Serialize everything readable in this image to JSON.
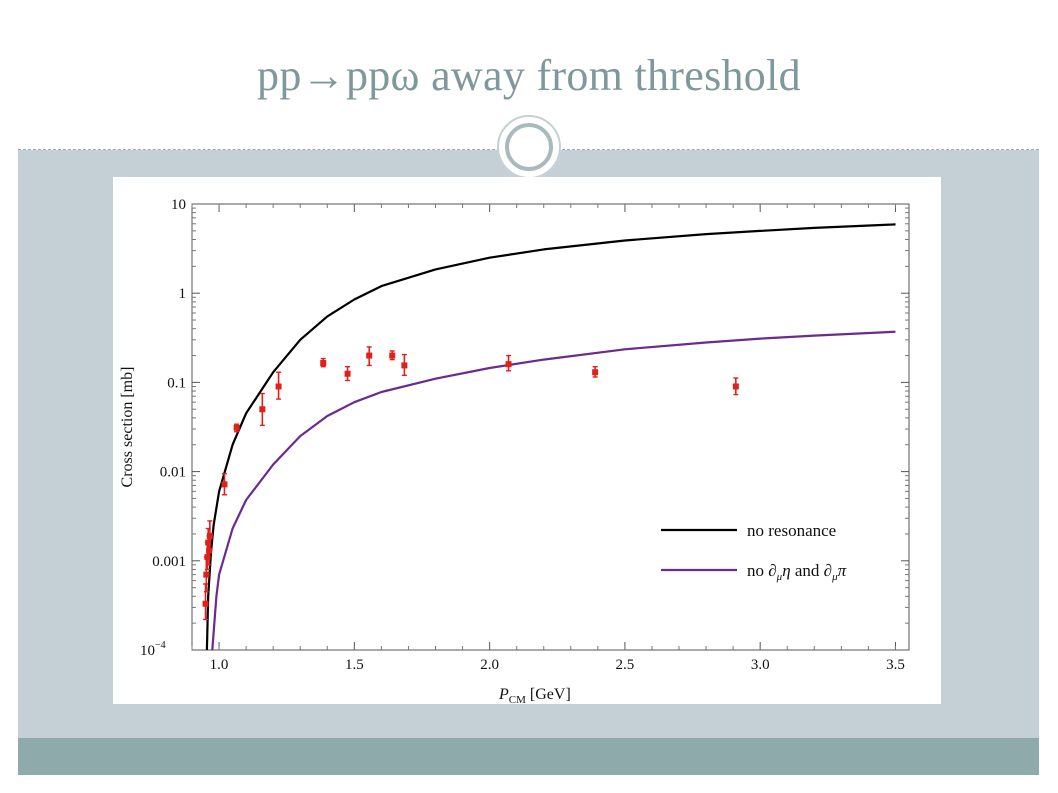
{
  "slide": {
    "title": "pp→ppω away from threshold"
  },
  "chart_data": {
    "type": "scatter",
    "xlabel_main": "P",
    "xlabel_sub": "CM",
    "xlabel_unit": " [GeV]",
    "ylabel": "Cross section [mb]",
    "xlim": [
      0.9,
      3.55
    ],
    "ylim": [
      0.0001,
      10
    ],
    "yscale": "log",
    "x_ticks": [
      {
        "value": 1.0,
        "label": "1.0"
      },
      {
        "value": 1.5,
        "label": "1.5"
      },
      {
        "value": 2.0,
        "label": "2.0"
      },
      {
        "value": 2.5,
        "label": "2.5"
      },
      {
        "value": 3.0,
        "label": "3.0"
      },
      {
        "value": 3.5,
        "label": "3.5"
      }
    ],
    "y_ticks": [
      {
        "value": 10,
        "label": "10"
      },
      {
        "value": 1,
        "label": "1"
      },
      {
        "value": 0.1,
        "label": "0.1"
      },
      {
        "value": 0.01,
        "label": "0.01"
      },
      {
        "value": 0.001,
        "label": "0.001"
      },
      {
        "value": 0.0001,
        "label": "10",
        "sup": "−4"
      }
    ],
    "legend": {
      "position": "bottom-right",
      "entries": [
        {
          "label": "no resonance",
          "color": "#000000"
        },
        {
          "label_parts": [
            "no ",
            "∂",
            "μ",
            "η",
            " and ",
            "∂",
            "μ",
            "π"
          ],
          "color": "#6a2a8e"
        }
      ]
    },
    "series": [
      {
        "kind": "line",
        "color": "#000000",
        "points": [
          [
            0.955,
            0.0001
          ],
          [
            0.96,
            0.0004
          ],
          [
            0.97,
            0.0012
          ],
          [
            0.98,
            0.0025
          ],
          [
            1.0,
            0.006
          ],
          [
            1.05,
            0.02
          ],
          [
            1.1,
            0.045
          ],
          [
            1.2,
            0.13
          ],
          [
            1.3,
            0.3
          ],
          [
            1.4,
            0.55
          ],
          [
            1.5,
            0.85
          ],
          [
            1.6,
            1.2
          ],
          [
            1.8,
            1.85
          ],
          [
            2.0,
            2.5
          ],
          [
            2.2,
            3.1
          ],
          [
            2.5,
            3.9
          ],
          [
            2.8,
            4.6
          ],
          [
            3.0,
            5.0
          ],
          [
            3.2,
            5.4
          ],
          [
            3.5,
            5.9
          ]
        ]
      },
      {
        "kind": "line",
        "color": "#6a2a8e",
        "points": [
          [
            0.975,
            0.0001
          ],
          [
            0.99,
            0.0004
          ],
          [
            1.0,
            0.0007
          ],
          [
            1.05,
            0.0023
          ],
          [
            1.1,
            0.0048
          ],
          [
            1.2,
            0.012
          ],
          [
            1.3,
            0.025
          ],
          [
            1.4,
            0.042
          ],
          [
            1.5,
            0.06
          ],
          [
            1.6,
            0.078
          ],
          [
            1.8,
            0.11
          ],
          [
            2.0,
            0.145
          ],
          [
            2.2,
            0.18
          ],
          [
            2.5,
            0.235
          ],
          [
            2.8,
            0.28
          ],
          [
            3.0,
            0.31
          ],
          [
            3.2,
            0.335
          ],
          [
            3.5,
            0.37
          ]
        ]
      },
      {
        "kind": "points",
        "color": "#e0201a",
        "points": [
          {
            "x": 0.95,
            "y": 0.00033,
            "lo": 0.00022,
            "hi": 0.00055
          },
          {
            "x": 0.953,
            "y": 0.0007,
            "lo": 0.00045,
            "hi": 0.0011
          },
          {
            "x": 0.957,
            "y": 0.0011,
            "lo": 0.0008,
            "hi": 0.0016
          },
          {
            "x": 0.96,
            "y": 0.0016,
            "lo": 0.0011,
            "hi": 0.0023
          },
          {
            "x": 0.963,
            "y": 0.0013,
            "lo": 0.0009,
            "hi": 0.0019
          },
          {
            "x": 0.966,
            "y": 0.0019,
            "lo": 0.0013,
            "hi": 0.0028
          },
          {
            "x": 1.02,
            "y": 0.0072,
            "lo": 0.0055,
            "hi": 0.0095
          },
          {
            "x": 1.065,
            "y": 0.031,
            "lo": 0.028,
            "hi": 0.034
          },
          {
            "x": 1.16,
            "y": 0.05,
            "lo": 0.033,
            "hi": 0.075
          },
          {
            "x": 1.22,
            "y": 0.09,
            "lo": 0.065,
            "hi": 0.13
          },
          {
            "x": 1.385,
            "y": 0.165,
            "lo": 0.15,
            "hi": 0.185
          },
          {
            "x": 1.475,
            "y": 0.125,
            "lo": 0.105,
            "hi": 0.15
          },
          {
            "x": 1.555,
            "y": 0.2,
            "lo": 0.155,
            "hi": 0.25
          },
          {
            "x": 1.64,
            "y": 0.2,
            "lo": 0.18,
            "hi": 0.225
          },
          {
            "x": 1.685,
            "y": 0.155,
            "lo": 0.12,
            "hi": 0.205
          },
          {
            "x": 2.07,
            "y": 0.16,
            "lo": 0.135,
            "hi": 0.2
          },
          {
            "x": 2.39,
            "y": 0.13,
            "lo": 0.115,
            "hi": 0.15
          },
          {
            "x": 2.91,
            "y": 0.09,
            "lo": 0.073,
            "hi": 0.112
          }
        ]
      }
    ]
  }
}
